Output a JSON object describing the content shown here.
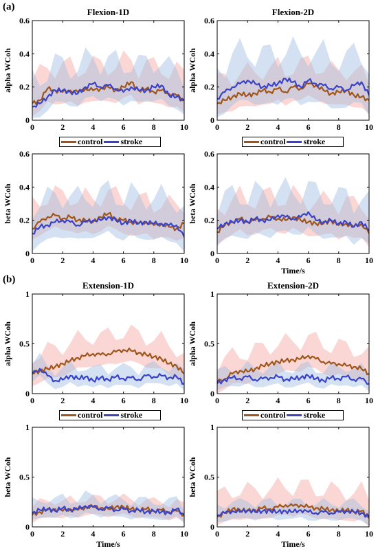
{
  "figure": {
    "panel_labels": [
      "(a)",
      "(b)"
    ]
  },
  "colors": {
    "control": "#a0551a",
    "stroke": "#3a43c8",
    "control_band": "#f4a6a0",
    "stroke_band": "#9fbde3",
    "mix_line": "#4a9a5a"
  },
  "legends": [
    {
      "items": [
        {
          "label": "control",
          "color": "#a0551a"
        },
        {
          "label": "stroke",
          "color": "#3a43c8"
        }
      ]
    },
    {
      "items": [
        {
          "label": "control",
          "color": "#a0551a"
        },
        {
          "label": "stroke",
          "color": "#3a43c8"
        }
      ]
    },
    {
      "items": [
        {
          "label": "control",
          "color": "#a0551a"
        },
        {
          "label": "stroke",
          "color": "#3a43c8"
        }
      ]
    },
    {
      "items": [
        {
          "label": "control",
          "color": "#a0551a"
        },
        {
          "label": "stroke",
          "color": "#3a43c8"
        }
      ]
    }
  ],
  "chart_data": [
    {
      "type": "line",
      "title": "Flexion-1D",
      "xlabel": "",
      "ylabel": "alpha WCoh",
      "xlim": [
        0,
        10
      ],
      "ylim": [
        0,
        0.6
      ],
      "xticks": [
        0,
        2,
        4,
        6,
        8,
        10
      ],
      "yticks": [
        0,
        0.2,
        0.4,
        0.6
      ],
      "x": [
        0,
        0.5,
        1,
        1.5,
        2,
        2.5,
        3,
        3.5,
        4,
        4.5,
        5,
        5.5,
        6,
        6.5,
        7,
        7.5,
        8,
        8.5,
        9,
        9.5,
        10
      ],
      "series": [
        {
          "name": "control",
          "values": [
            0.1,
            0.12,
            0.19,
            0.18,
            0.17,
            0.18,
            0.17,
            0.19,
            0.18,
            0.19,
            0.2,
            0.18,
            0.2,
            0.23,
            0.18,
            0.19,
            0.17,
            0.18,
            0.16,
            0.15,
            0.12
          ],
          "band": [
            0.08,
            0.22
          ]
        },
        {
          "name": "stroke",
          "values": [
            0.08,
            0.1,
            0.14,
            0.18,
            0.18,
            0.17,
            0.16,
            0.2,
            0.22,
            0.2,
            0.21,
            0.19,
            0.17,
            0.2,
            0.18,
            0.18,
            0.2,
            0.21,
            0.15,
            0.14,
            0.12
          ],
          "band": [
            0.08,
            0.24
          ]
        }
      ]
    },
    {
      "type": "line",
      "title": "Flexion-2D",
      "xlabel": "",
      "ylabel": "alpha WCoh",
      "xlim": [
        0,
        10
      ],
      "ylim": [
        0,
        0.6
      ],
      "xticks": [
        0,
        2,
        4,
        6,
        8,
        10
      ],
      "yticks": [
        0,
        0.2,
        0.4,
        0.6
      ],
      "x": [
        0,
        0.5,
        1,
        1.5,
        2,
        2.5,
        3,
        3.5,
        4,
        4.5,
        5,
        5.5,
        6,
        6.5,
        7,
        7.5,
        8,
        8.5,
        9,
        9.5,
        10
      ],
      "series": [
        {
          "name": "control",
          "values": [
            0.1,
            0.12,
            0.14,
            0.16,
            0.15,
            0.16,
            0.18,
            0.17,
            0.19,
            0.17,
            0.2,
            0.19,
            0.22,
            0.21,
            0.18,
            0.16,
            0.17,
            0.18,
            0.15,
            0.14,
            0.12
          ],
          "band": [
            0.08,
            0.2
          ]
        },
        {
          "name": "stroke",
          "values": [
            0.13,
            0.17,
            0.2,
            0.22,
            0.24,
            0.22,
            0.2,
            0.21,
            0.22,
            0.25,
            0.23,
            0.2,
            0.24,
            0.22,
            0.21,
            0.19,
            0.2,
            0.18,
            0.21,
            0.23,
            0.15
          ],
          "band": [
            0.12,
            0.28
          ]
        }
      ]
    },
    {
      "type": "line",
      "title": "",
      "xlabel": "",
      "ylabel": "beta WCoh",
      "xlim": [
        0,
        10
      ],
      "ylim": [
        0,
        0.6
      ],
      "xticks": [
        0,
        2,
        4,
        6,
        8,
        10
      ],
      "yticks": [
        0,
        0.2,
        0.4,
        0.6
      ],
      "x": [
        0,
        0.5,
        1,
        1.5,
        2,
        2.5,
        3,
        3.5,
        4,
        4.5,
        5,
        5.5,
        6,
        6.5,
        7,
        7.5,
        8,
        8.5,
        9,
        9.5,
        10
      ],
      "series": [
        {
          "name": "control",
          "values": [
            0.15,
            0.19,
            0.22,
            0.23,
            0.21,
            0.22,
            0.2,
            0.2,
            0.19,
            0.22,
            0.24,
            0.21,
            0.2,
            0.19,
            0.18,
            0.19,
            0.17,
            0.18,
            0.16,
            0.15,
            0.18
          ],
          "band": [
            0.08,
            0.2
          ]
        },
        {
          "name": "stroke",
          "values": [
            0.12,
            0.16,
            0.17,
            0.19,
            0.2,
            0.19,
            0.17,
            0.19,
            0.2,
            0.2,
            0.22,
            0.2,
            0.18,
            0.2,
            0.18,
            0.19,
            0.18,
            0.18,
            0.17,
            0.17,
            0.1
          ],
          "band": [
            0.1,
            0.24
          ]
        }
      ]
    },
    {
      "type": "line",
      "title": "",
      "xlabel": "Time/s",
      "ylabel": "beta WCoh",
      "xlim": [
        0,
        10
      ],
      "ylim": [
        0,
        0.6
      ],
      "xticks": [
        0,
        2,
        4,
        6,
        8,
        10
      ],
      "yticks": [
        0,
        0.2,
        0.4,
        0.6
      ],
      "x": [
        0,
        0.5,
        1,
        1.5,
        2,
        2.5,
        3,
        3.5,
        4,
        4.5,
        5,
        5.5,
        6,
        6.5,
        7,
        7.5,
        8,
        8.5,
        9,
        9.5,
        10
      ],
      "series": [
        {
          "name": "control",
          "values": [
            0.13,
            0.17,
            0.19,
            0.21,
            0.19,
            0.2,
            0.21,
            0.22,
            0.21,
            0.2,
            0.22,
            0.2,
            0.19,
            0.18,
            0.18,
            0.2,
            0.17,
            0.18,
            0.16,
            0.18,
            0.12
          ],
          "band": [
            0.08,
            0.2
          ]
        },
        {
          "name": "stroke",
          "values": [
            0.15,
            0.18,
            0.19,
            0.2,
            0.19,
            0.21,
            0.2,
            0.2,
            0.23,
            0.22,
            0.21,
            0.22,
            0.25,
            0.2,
            0.19,
            0.2,
            0.18,
            0.19,
            0.16,
            0.19,
            0.14
          ],
          "band": [
            0.1,
            0.24
          ]
        }
      ]
    },
    {
      "type": "line",
      "title": "Extension-1D",
      "xlabel": "",
      "ylabel": "alpha WCoh",
      "xlim": [
        0,
        10
      ],
      "ylim": [
        0,
        1
      ],
      "xticks": [
        0,
        2,
        4,
        6,
        8,
        10
      ],
      "yticks": [
        0,
        0.5,
        1
      ],
      "x": [
        0,
        0.5,
        1,
        1.5,
        2,
        2.5,
        3,
        3.5,
        4,
        4.5,
        5,
        5.5,
        6,
        6.5,
        7,
        7.5,
        8,
        8.5,
        9,
        9.5,
        10
      ],
      "series": [
        {
          "name": "control",
          "values": [
            0.2,
            0.23,
            0.25,
            0.27,
            0.3,
            0.33,
            0.36,
            0.38,
            0.4,
            0.39,
            0.4,
            0.42,
            0.44,
            0.43,
            0.41,
            0.39,
            0.37,
            0.35,
            0.3,
            0.28,
            0.2
          ],
          "band": [
            0.12,
            0.28
          ]
        },
        {
          "name": "stroke",
          "values": [
            0.2,
            0.25,
            0.18,
            0.13,
            0.14,
            0.18,
            0.15,
            0.17,
            0.13,
            0.16,
            0.14,
            0.17,
            0.15,
            0.16,
            0.14,
            0.18,
            0.17,
            0.18,
            0.16,
            0.17,
            0.1
          ],
          "band": [
            0.08,
            0.16
          ]
        }
      ]
    },
    {
      "type": "line",
      "title": "Extension-2D",
      "xlabel": "",
      "ylabel": "alpha WCoh",
      "xlim": [
        0,
        10
      ],
      "ylim": [
        0,
        1
      ],
      "xticks": [
        0,
        2,
        4,
        6,
        8,
        10
      ],
      "yticks": [
        0,
        0.5,
        1
      ],
      "x": [
        0,
        0.5,
        1,
        1.5,
        2,
        2.5,
        3,
        3.5,
        4,
        4.5,
        5,
        5.5,
        6,
        6.5,
        7,
        7.5,
        8,
        8.5,
        9,
        9.5,
        10
      ],
      "series": [
        {
          "name": "control",
          "values": [
            0.12,
            0.15,
            0.2,
            0.23,
            0.22,
            0.25,
            0.28,
            0.3,
            0.32,
            0.33,
            0.34,
            0.35,
            0.38,
            0.35,
            0.32,
            0.3,
            0.3,
            0.28,
            0.27,
            0.25,
            0.2
          ],
          "band": [
            0.12,
            0.28
          ]
        },
        {
          "name": "stroke",
          "values": [
            0.1,
            0.14,
            0.16,
            0.15,
            0.17,
            0.14,
            0.15,
            0.16,
            0.17,
            0.14,
            0.15,
            0.16,
            0.18,
            0.15,
            0.13,
            0.16,
            0.15,
            0.17,
            0.14,
            0.15,
            0.1
          ],
          "band": [
            0.08,
            0.16
          ]
        }
      ]
    },
    {
      "type": "line",
      "title": "",
      "xlabel": "Time/s",
      "ylabel": "beta WCoh",
      "xlim": [
        0,
        10
      ],
      "ylim": [
        0,
        1
      ],
      "xticks": [
        0,
        2,
        4,
        6,
        8,
        10
      ],
      "yticks": [
        0,
        0.5,
        1
      ],
      "x": [
        0,
        0.5,
        1,
        1.5,
        2,
        2.5,
        3,
        3.5,
        4,
        4.5,
        5,
        5.5,
        6,
        6.5,
        7,
        7.5,
        8,
        8.5,
        9,
        9.5,
        10
      ],
      "series": [
        {
          "name": "control",
          "values": [
            0.12,
            0.15,
            0.17,
            0.18,
            0.16,
            0.18,
            0.17,
            0.2,
            0.2,
            0.19,
            0.18,
            0.2,
            0.2,
            0.18,
            0.17,
            0.18,
            0.16,
            0.17,
            0.15,
            0.16,
            0.12
          ],
          "band": [
            0.08,
            0.14
          ]
        },
        {
          "name": "stroke",
          "values": [
            0.14,
            0.17,
            0.18,
            0.16,
            0.19,
            0.17,
            0.18,
            0.21,
            0.2,
            0.18,
            0.19,
            0.17,
            0.18,
            0.16,
            0.17,
            0.15,
            0.16,
            0.15,
            0.14,
            0.18,
            0.12
          ],
          "band": [
            0.08,
            0.16
          ]
        }
      ]
    },
    {
      "type": "line",
      "title": "",
      "xlabel": "Time/s",
      "ylabel": "beta WCoh",
      "xlim": [
        0,
        10
      ],
      "ylim": [
        0,
        1
      ],
      "xticks": [
        0,
        2,
        4,
        6,
        8,
        10
      ],
      "yticks": [
        0,
        0.5,
        1
      ],
      "x": [
        0,
        0.5,
        1,
        1.5,
        2,
        2.5,
        3,
        3.5,
        4,
        4.5,
        5,
        5.5,
        6,
        6.5,
        7,
        7.5,
        8,
        8.5,
        9,
        9.5,
        10
      ],
      "series": [
        {
          "name": "control",
          "values": [
            0.1,
            0.14,
            0.18,
            0.17,
            0.16,
            0.17,
            0.19,
            0.18,
            0.2,
            0.22,
            0.21,
            0.22,
            0.2,
            0.19,
            0.18,
            0.17,
            0.16,
            0.17,
            0.15,
            0.16,
            0.09
          ],
          "band": [
            0.1,
            0.3
          ]
        },
        {
          "name": "stroke",
          "values": [
            0.12,
            0.14,
            0.16,
            0.15,
            0.17,
            0.15,
            0.16,
            0.16,
            0.15,
            0.16,
            0.15,
            0.17,
            0.15,
            0.14,
            0.15,
            0.14,
            0.15,
            0.16,
            0.15,
            0.14,
            0.1
          ],
          "band": [
            0.08,
            0.14
          ]
        }
      ]
    }
  ]
}
